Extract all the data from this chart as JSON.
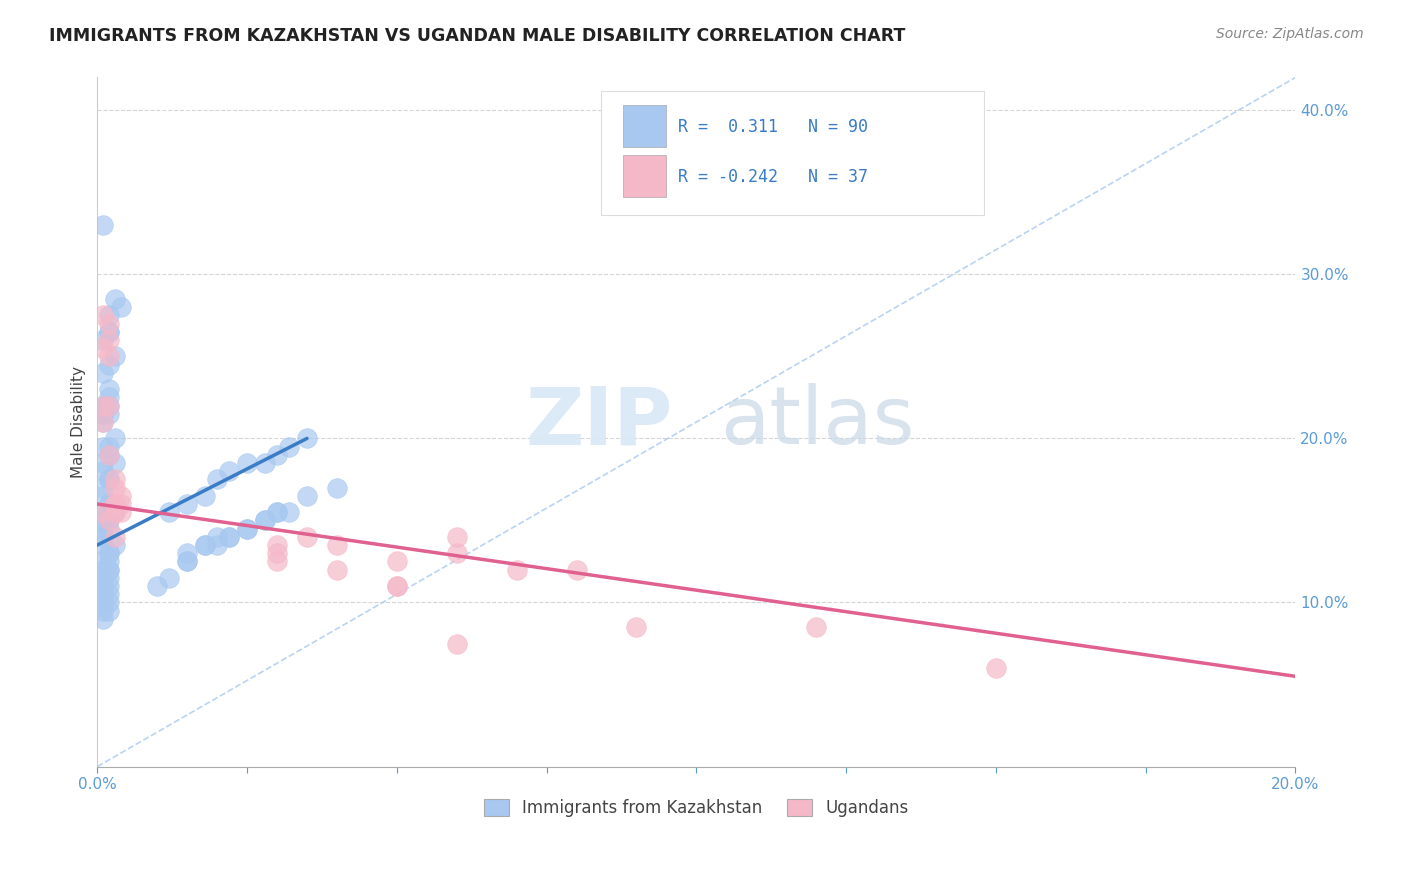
{
  "title": "IMMIGRANTS FROM KAZAKHSTAN VS UGANDAN MALE DISABILITY CORRELATION CHART",
  "source": "Source: ZipAtlas.com",
  "ylabel": "Male Disability",
  "legend_label1": "Immigrants from Kazakhstan",
  "legend_label2": "Ugandans",
  "r1": 0.311,
  "n1": 90,
  "r2": -0.242,
  "n2": 37,
  "color_blue": "#A8C8F0",
  "color_pink": "#F5B8C8",
  "color_blue_line": "#3A7CC5",
  "color_pink_line": "#E06090",
  "color_ref_line": "#A8C8F0",
  "xlim": [
    0.0,
    0.2
  ],
  "ylim": [
    0.0,
    0.42
  ],
  "background": "#FFFFFF",
  "watermark_zip": "ZIP",
  "watermark_atlas": "atlas",
  "blue_trend_x": [
    0.0,
    0.035
  ],
  "blue_trend_y": [
    0.135,
    0.2
  ],
  "pink_trend_x": [
    0.0,
    0.2
  ],
  "pink_trend_y": [
    0.16,
    0.055
  ],
  "blue_points_x": [
    0.001,
    0.002,
    0.003,
    0.002,
    0.004,
    0.001,
    0.003,
    0.002,
    0.001,
    0.002,
    0.001,
    0.001,
    0.002,
    0.001,
    0.002,
    0.001,
    0.002,
    0.001,
    0.003,
    0.002,
    0.001,
    0.002,
    0.001,
    0.002,
    0.001,
    0.003,
    0.002,
    0.001,
    0.002,
    0.001,
    0.002,
    0.001,
    0.002,
    0.001,
    0.002,
    0.001,
    0.002,
    0.001,
    0.003,
    0.002,
    0.001,
    0.002,
    0.001,
    0.002,
    0.001,
    0.002,
    0.003,
    0.002,
    0.001,
    0.002,
    0.001,
    0.002,
    0.001,
    0.002,
    0.001,
    0.002,
    0.001,
    0.002,
    0.001,
    0.002,
    0.015,
    0.012,
    0.018,
    0.02,
    0.025,
    0.022,
    0.03,
    0.028,
    0.032,
    0.035,
    0.015,
    0.018,
    0.022,
    0.025,
    0.028,
    0.03,
    0.032,
    0.02,
    0.015,
    0.018,
    0.01,
    0.012,
    0.015,
    0.02,
    0.022,
    0.025,
    0.028,
    0.03,
    0.035,
    0.04
  ],
  "blue_points_y": [
    0.33,
    0.265,
    0.285,
    0.275,
    0.28,
    0.26,
    0.25,
    0.245,
    0.24,
    0.265,
    0.22,
    0.215,
    0.225,
    0.22,
    0.23,
    0.215,
    0.22,
    0.21,
    0.2,
    0.215,
    0.195,
    0.19,
    0.185,
    0.195,
    0.18,
    0.185,
    0.175,
    0.17,
    0.175,
    0.165,
    0.16,
    0.155,
    0.16,
    0.15,
    0.155,
    0.145,
    0.15,
    0.14,
    0.155,
    0.145,
    0.135,
    0.13,
    0.125,
    0.13,
    0.12,
    0.125,
    0.135,
    0.12,
    0.115,
    0.12,
    0.11,
    0.115,
    0.105,
    0.11,
    0.1,
    0.105,
    0.095,
    0.1,
    0.09,
    0.095,
    0.16,
    0.155,
    0.165,
    0.175,
    0.185,
    0.18,
    0.19,
    0.185,
    0.195,
    0.2,
    0.13,
    0.135,
    0.14,
    0.145,
    0.15,
    0.155,
    0.155,
    0.14,
    0.125,
    0.135,
    0.11,
    0.115,
    0.125,
    0.135,
    0.14,
    0.145,
    0.15,
    0.155,
    0.165,
    0.17
  ],
  "pink_points_x": [
    0.001,
    0.001,
    0.002,
    0.002,
    0.002,
    0.001,
    0.001,
    0.002,
    0.001,
    0.002,
    0.002,
    0.003,
    0.003,
    0.003,
    0.003,
    0.004,
    0.004,
    0.003,
    0.003,
    0.004,
    0.03,
    0.035,
    0.03,
    0.04,
    0.05,
    0.06,
    0.07,
    0.08,
    0.06,
    0.09,
    0.05,
    0.04,
    0.03,
    0.05,
    0.06,
    0.12,
    0.15
  ],
  "pink_points_y": [
    0.255,
    0.275,
    0.26,
    0.25,
    0.27,
    0.21,
    0.22,
    0.22,
    0.155,
    0.19,
    0.15,
    0.17,
    0.16,
    0.175,
    0.155,
    0.165,
    0.16,
    0.14,
    0.16,
    0.155,
    0.135,
    0.14,
    0.13,
    0.135,
    0.125,
    0.13,
    0.12,
    0.12,
    0.14,
    0.085,
    0.11,
    0.12,
    0.125,
    0.11,
    0.075,
    0.085,
    0.06
  ]
}
